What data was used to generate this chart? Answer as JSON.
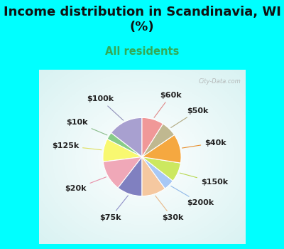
{
  "title": "Income distribution in Scandinavia, WI\n(%)",
  "subtitle": "All residents",
  "background_outer": "#00FFFF",
  "labels": [
    "$100k",
    "$10k",
    "$125k",
    "$20k",
    "$75k",
    "$30k",
    "$200k",
    "$150k",
    "$40k",
    "$50k",
    "$60k"
  ],
  "sizes": [
    14.5,
    3.0,
    9.5,
    12.5,
    10.5,
    10.0,
    4.5,
    8.0,
    12.0,
    6.5,
    9.0
  ],
  "colors": [
    "#a8a0d0",
    "#88cc88",
    "#f8f870",
    "#f0a8b8",
    "#8080c0",
    "#f5c8a0",
    "#a8c8f5",
    "#cce860",
    "#f5a840",
    "#c0b890",
    "#f09898"
  ],
  "startangle": 90,
  "label_fontsize": 8,
  "title_fontsize": 13,
  "subtitle_fontsize": 10.5,
  "subtitle_color": "#33aa55",
  "title_color": "#111111",
  "line_colors": [
    "#9090b8",
    "#88bb88",
    "#e0e060",
    "#e890a8",
    "#9090c8",
    "#e8b888",
    "#90b8e8",
    "#b8d850",
    "#e89030",
    "#b0a880",
    "#e08888"
  ]
}
